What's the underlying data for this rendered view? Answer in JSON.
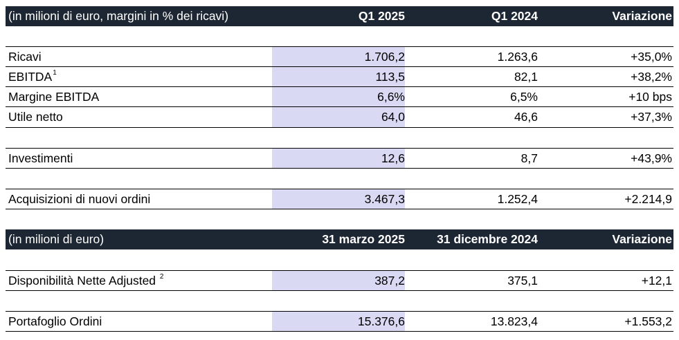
{
  "table1": {
    "header": {
      "label": "(in milioni di euro, margini in % dei ricavi)",
      "col1": "Q1 2025",
      "col2": "Q1 2024",
      "col3": "Variazione"
    },
    "rows": [
      {
        "label": "Ricavi",
        "v1": "1.706,2",
        "v2": "1.263,6",
        "v3": "+35,0%"
      },
      {
        "label": "EBITDA",
        "sup": "1",
        "v1": "113,5",
        "v2": "82,1",
        "v3": "+38,2%"
      },
      {
        "label": "Margine EBITDA",
        "v1": "6,6%",
        "v2": "6,5%",
        "v3": "+10 bps"
      },
      {
        "label": "Utile netto",
        "v1": "64,0",
        "v2": "46,6",
        "v3": "+37,3%"
      },
      {
        "label": "Investimenti",
        "v1": "12,6",
        "v2": "8,7",
        "v3": "+43,9%"
      },
      {
        "label": "Acquisizioni di nuovi ordini",
        "v1": "3.467,3",
        "v2": "1.252,4",
        "v3": "+2.214,9"
      }
    ]
  },
  "table2": {
    "header": {
      "label": "(in milioni di euro)",
      "col1": "31 marzo 2025",
      "col2": "31 dicembre 2024",
      "col3": "Variazione"
    },
    "rows": [
      {
        "label": "Disponibilità Nette Adjusted",
        "sup": "2",
        "v1": "387,2",
        "v2": "375,1",
        "v3": "+12,1"
      },
      {
        "label": "Portafoglio Ordini",
        "v1": "15.376,6",
        "v2": "13.823,4",
        "v3": "+1.553,2"
      }
    ]
  }
}
